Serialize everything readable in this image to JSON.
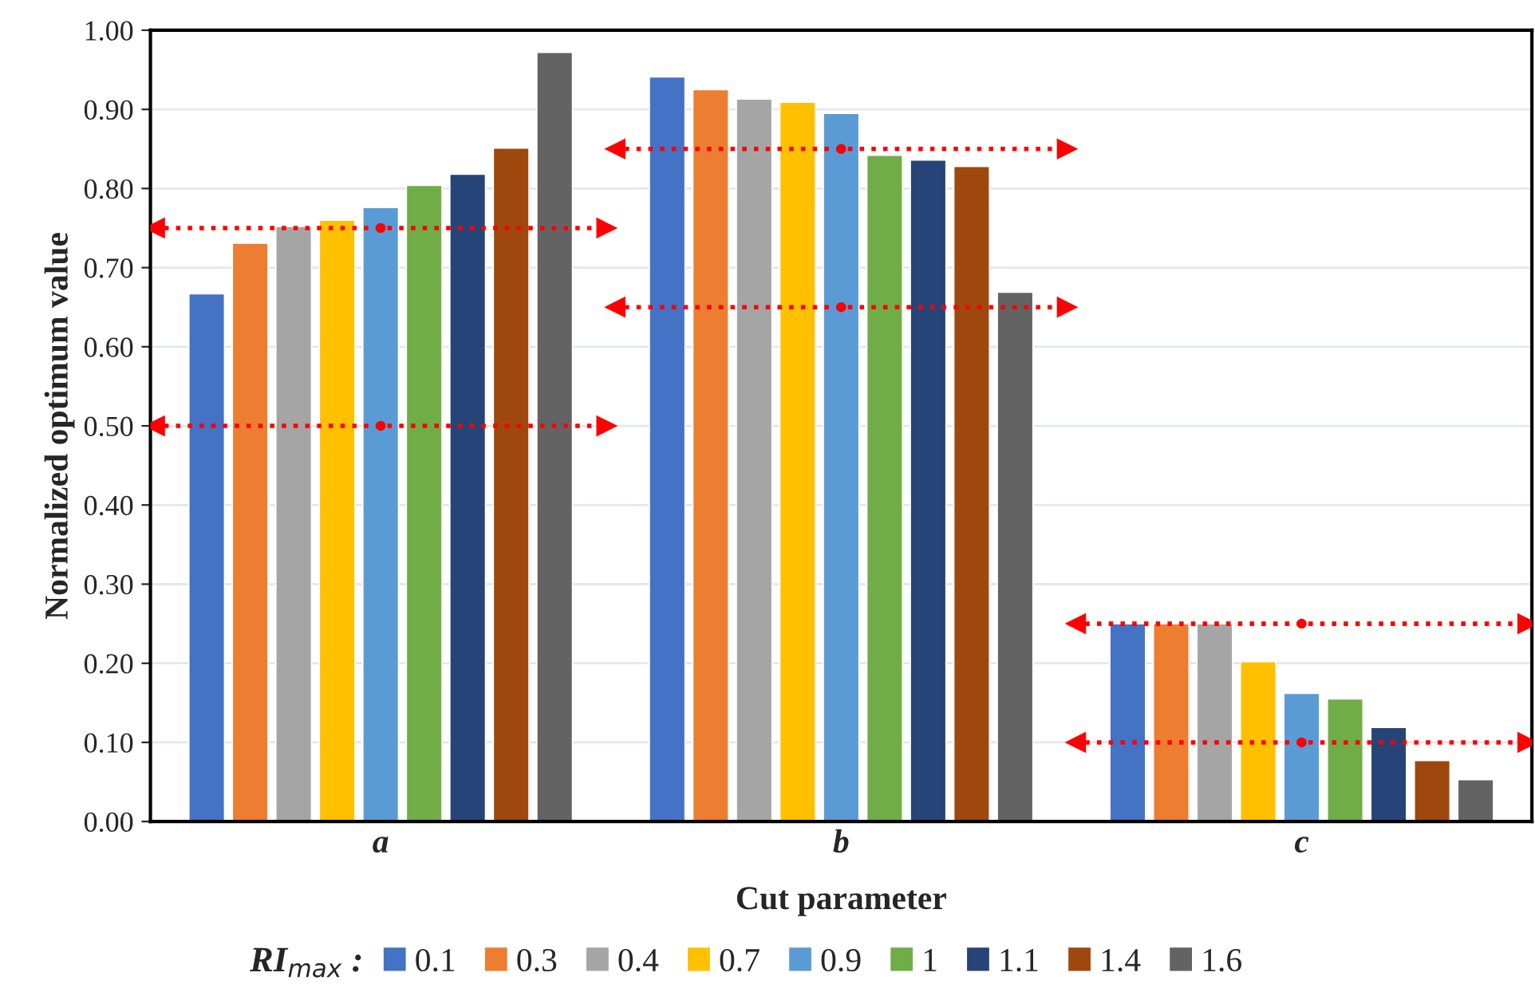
{
  "chart_data": {
    "type": "bar",
    "xlabel": "Cut parameter",
    "ylabel": "Normalized optimum value",
    "legend_title": "RI$_{max}$ :",
    "categories": [
      "a",
      "b",
      "c"
    ],
    "ylim": [
      0,
      1
    ],
    "yticks": [
      {
        "value": 0,
        "label": "0.00"
      },
      {
        "value": 0.1,
        "label": "0.10"
      },
      {
        "value": 0.2,
        "label": "0.20"
      },
      {
        "value": 0.3,
        "label": "0.30"
      },
      {
        "value": 0.4,
        "label": "0.40"
      },
      {
        "value": 0.5,
        "label": "0.50"
      },
      {
        "value": 0.6,
        "label": "0.60"
      },
      {
        "value": 0.7,
        "label": "0.70"
      },
      {
        "value": 0.8,
        "label": "0.80"
      },
      {
        "value": 0.9,
        "label": "0.90"
      },
      {
        "value": 1,
        "label": "1.00"
      }
    ],
    "grid": "y",
    "legend": "bottom",
    "series": [
      {
        "name": "0.1",
        "color": "#4472c4",
        "values": [
          0.667,
          0.941,
          0.25
        ]
      },
      {
        "name": "0.3",
        "color": "#ed7d31",
        "values": [
          0.731,
          0.925,
          0.25
        ]
      },
      {
        "name": "0.4",
        "color": "#a5a5a5",
        "values": [
          0.752,
          0.913,
          0.25
        ]
      },
      {
        "name": "0.7",
        "color": "#ffc000",
        "values": [
          0.76,
          0.909,
          0.202
        ]
      },
      {
        "name": "0.9",
        "color": "#5b9bd5",
        "values": [
          0.776,
          0.895,
          0.162
        ]
      },
      {
        "name": "1",
        "color": "#70ad47",
        "values": [
          0.804,
          0.842,
          0.155
        ]
      },
      {
        "name": "1.1",
        "color": "#264478",
        "values": [
          0.818,
          0.836,
          0.119
        ]
      },
      {
        "name": "1.4",
        "color": "#9e480e",
        "values": [
          0.851,
          0.828,
          0.077
        ]
      },
      {
        "name": "1.6",
        "color": "#636363",
        "values": [
          0.972,
          0.669,
          0.053
        ]
      },
      {
        "type": "line",
        "color": "#ff0000",
        "line_style": "dotted",
        "marker": "circle",
        "values": [
          0.75,
          null,
          null
        ]
      },
      {
        "type": "line",
        "color": "#ff0000",
        "line_style": "dotted",
        "marker": "circle",
        "values": [
          0.5,
          null,
          null
        ]
      },
      {
        "type": "line",
        "color": "#ff0000",
        "line_style": "dotted",
        "marker": "circle",
        "values": [
          null,
          0.85,
          null
        ]
      },
      {
        "type": "line",
        "color": "#ff0000",
        "line_style": "dotted",
        "marker": "circle",
        "values": [
          null,
          0.65,
          null
        ]
      },
      {
        "type": "line",
        "color": "#ff0000",
        "line_style": "dotted",
        "marker": "circle",
        "values": [
          null,
          null,
          0.25
        ]
      },
      {
        "type": "line",
        "color": "#ff0000",
        "line_style": "dotted",
        "marker": "circle",
        "values": [
          null,
          null,
          0.1
        ]
      }
    ]
  }
}
